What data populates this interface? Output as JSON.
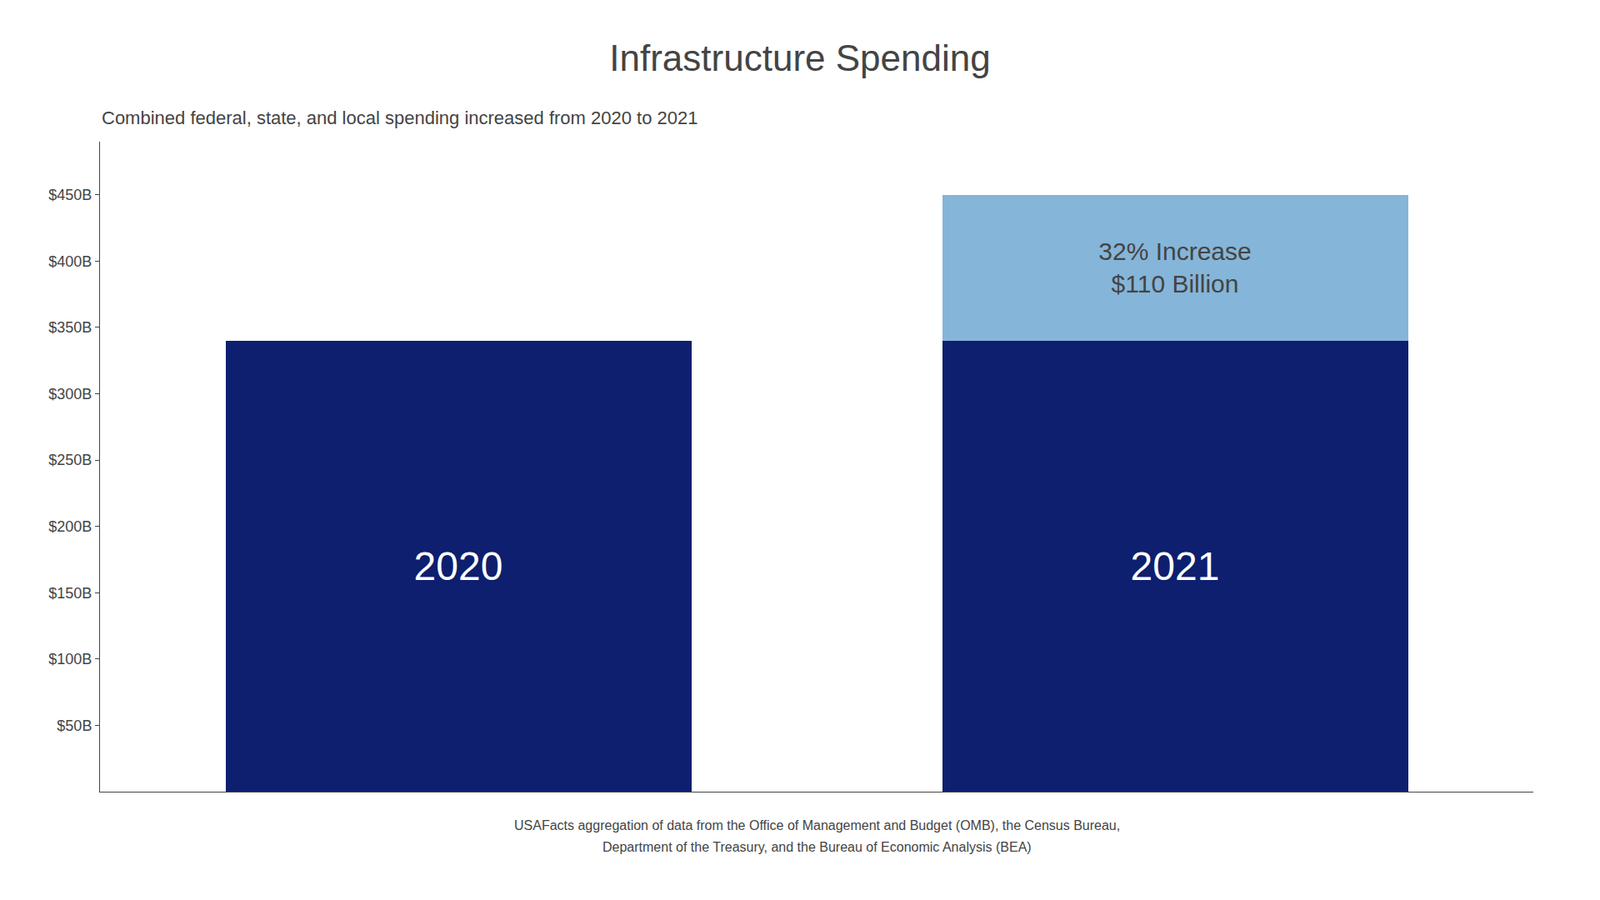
{
  "chart_data": {
    "type": "bar",
    "stacked": true,
    "title": "Infrastructure Spending",
    "subtitle": "Combined federal, state, and local spending increased from 2020 to 2021",
    "categories": [
      "2020",
      "2021"
    ],
    "series": [
      {
        "color": "#0d1f6e",
        "values": [
          340,
          340
        ]
      },
      {
        "color": "#85b5d8",
        "values": [
          null,
          110
        ]
      }
    ],
    "annotations": [
      "32% Increase",
      "$110 Billion"
    ],
    "footer": [
      "USAFacts aggregation of data from the Office of Management and Budget (OMB), the Census Bureau,",
      "Department of the Treasury, and the Bureau of Economic Analysis (BEA)"
    ],
    "ylim": [
      0,
      490
    ],
    "yticks": [
      {
        "value": 50,
        "label": "$50B"
      },
      {
        "value": 100,
        "label": "$100B"
      },
      {
        "value": 150,
        "label": "$150B"
      },
      {
        "value": 200,
        "label": "$200B"
      },
      {
        "value": 250,
        "label": "$250B"
      },
      {
        "value": 300,
        "label": "$300B"
      },
      {
        "value": 350,
        "label": "$350B"
      },
      {
        "value": 400,
        "label": "$400B"
      },
      {
        "value": 450,
        "label": "$450B"
      }
    ],
    "grid": false,
    "tick_labels": "y"
  }
}
